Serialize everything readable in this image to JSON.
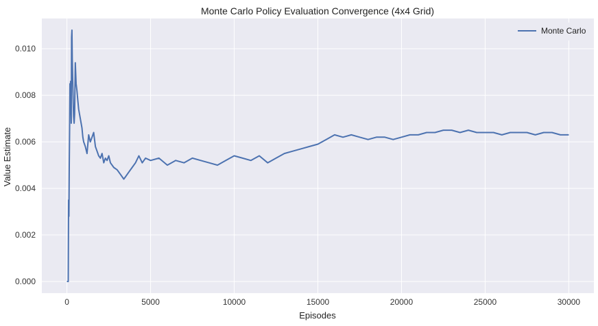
{
  "chart_data": {
    "type": "line",
    "title": "Monte Carlo Policy Evaluation Convergence (4x4 Grid)",
    "xlabel": "Episodes",
    "ylabel": "Value Estimate",
    "xlim": [
      -1500,
      31500
    ],
    "ylim": [
      -0.0005,
      0.0113
    ],
    "xticks": [
      0,
      5000,
      10000,
      15000,
      20000,
      25000,
      30000
    ],
    "xtick_labels": [
      "0",
      "5000",
      "10000",
      "15000",
      "20000",
      "25000",
      "30000"
    ],
    "yticks": [
      0.0,
      0.002,
      0.004,
      0.006,
      0.008,
      0.01
    ],
    "ytick_labels": [
      "0.000",
      "0.002",
      "0.004",
      "0.006",
      "0.008",
      "0.010"
    ],
    "grid": true,
    "background_color": "#eaeaf2",
    "legend_position": "top-right",
    "series": [
      {
        "name": "Monte Carlo",
        "color": "#4c72b0",
        "x": [
          0,
          80,
          100,
          120,
          140,
          160,
          180,
          200,
          220,
          240,
          260,
          280,
          300,
          320,
          340,
          360,
          380,
          400,
          430,
          460,
          500,
          550,
          600,
          650,
          700,
          750,
          800,
          850,
          900,
          950,
          1000,
          1100,
          1200,
          1300,
          1400,
          1500,
          1600,
          1700,
          1800,
          1900,
          2000,
          2100,
          2200,
          2300,
          2400,
          2500,
          2600,
          2800,
          3000,
          3200,
          3400,
          3500,
          3700,
          3900,
          4100,
          4300,
          4500,
          4700,
          5000,
          5500,
          6000,
          6500,
          7000,
          7500,
          8000,
          8500,
          9000,
          9500,
          10000,
          10500,
          11000,
          11500,
          12000,
          12500,
          13000,
          13500,
          14000,
          14500,
          15000,
          15500,
          16000,
          16500,
          17000,
          17500,
          18000,
          18500,
          19000,
          19500,
          20000,
          20500,
          21000,
          21500,
          22000,
          22500,
          23000,
          23500,
          24000,
          24500,
          25000,
          25500,
          26000,
          26500,
          27000,
          27500,
          28000,
          28500,
          29000,
          29500,
          30000
        ],
        "y": [
          0.0,
          0.0,
          0.0035,
          0.0028,
          0.005,
          0.0065,
          0.0085,
          0.0072,
          0.0086,
          0.0078,
          0.0068,
          0.0105,
          0.0108,
          0.0095,
          0.0088,
          0.0082,
          0.0075,
          0.0071,
          0.0068,
          0.0072,
          0.0094,
          0.0085,
          0.0082,
          0.0078,
          0.0074,
          0.0072,
          0.007,
          0.0068,
          0.0066,
          0.0062,
          0.006,
          0.0058,
          0.0055,
          0.0063,
          0.006,
          0.0062,
          0.0064,
          0.0058,
          0.0056,
          0.0054,
          0.0053,
          0.0055,
          0.0051,
          0.0053,
          0.0052,
          0.0054,
          0.0051,
          0.0049,
          0.0048,
          0.0046,
          0.0044,
          0.0045,
          0.0047,
          0.0049,
          0.0051,
          0.0054,
          0.0051,
          0.0053,
          0.0052,
          0.0053,
          0.005,
          0.0052,
          0.0051,
          0.0053,
          0.0052,
          0.0051,
          0.005,
          0.0052,
          0.0054,
          0.0053,
          0.0052,
          0.0054,
          0.0051,
          0.0053,
          0.0055,
          0.0056,
          0.0057,
          0.0058,
          0.0059,
          0.0061,
          0.0063,
          0.0062,
          0.0063,
          0.0062,
          0.0061,
          0.0062,
          0.0062,
          0.0061,
          0.0062,
          0.0063,
          0.0063,
          0.0064,
          0.0064,
          0.0065,
          0.0065,
          0.0064,
          0.0065,
          0.0064,
          0.0064,
          0.0064,
          0.0063,
          0.0064,
          0.0064,
          0.0064,
          0.0063,
          0.0064,
          0.0064,
          0.0063,
          0.0063
        ]
      }
    ]
  }
}
